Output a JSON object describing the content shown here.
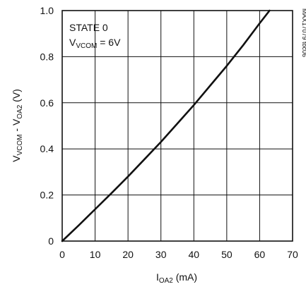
{
  "chart_data": {
    "type": "line",
    "title": "",
    "annotations": {
      "state": "STATE 0",
      "vcom_prefix": "V",
      "vcom_sub": "VCOM",
      "vcom_suffix": " = 6V"
    },
    "figure_id": "MAX17079 toc06",
    "xlabel": {
      "main": "I",
      "sub": "OA2",
      "unit": " (mA)"
    },
    "ylabel": {
      "p1": "V",
      "s1": "VCOM",
      "mid": " - V",
      "s2": "OA2",
      "unit": " (V)"
    },
    "xlim": [
      0,
      70
    ],
    "ylim": [
      0,
      1.0
    ],
    "x_ticks": [
      "0",
      "10",
      "20",
      "30",
      "40",
      "50",
      "60",
      "70"
    ],
    "y_ticks": [
      "0",
      "0.2",
      "0.4",
      "0.6",
      "0.8",
      "1.0"
    ],
    "grid": true,
    "series": [
      {
        "x": [
          0,
          5,
          10,
          15,
          20,
          25,
          30,
          35,
          40,
          45,
          50,
          55,
          60,
          63
        ],
        "y": [
          0,
          0.068,
          0.138,
          0.208,
          0.28,
          0.355,
          0.43,
          0.51,
          0.59,
          0.675,
          0.76,
          0.85,
          0.945,
          1.0
        ]
      }
    ]
  }
}
